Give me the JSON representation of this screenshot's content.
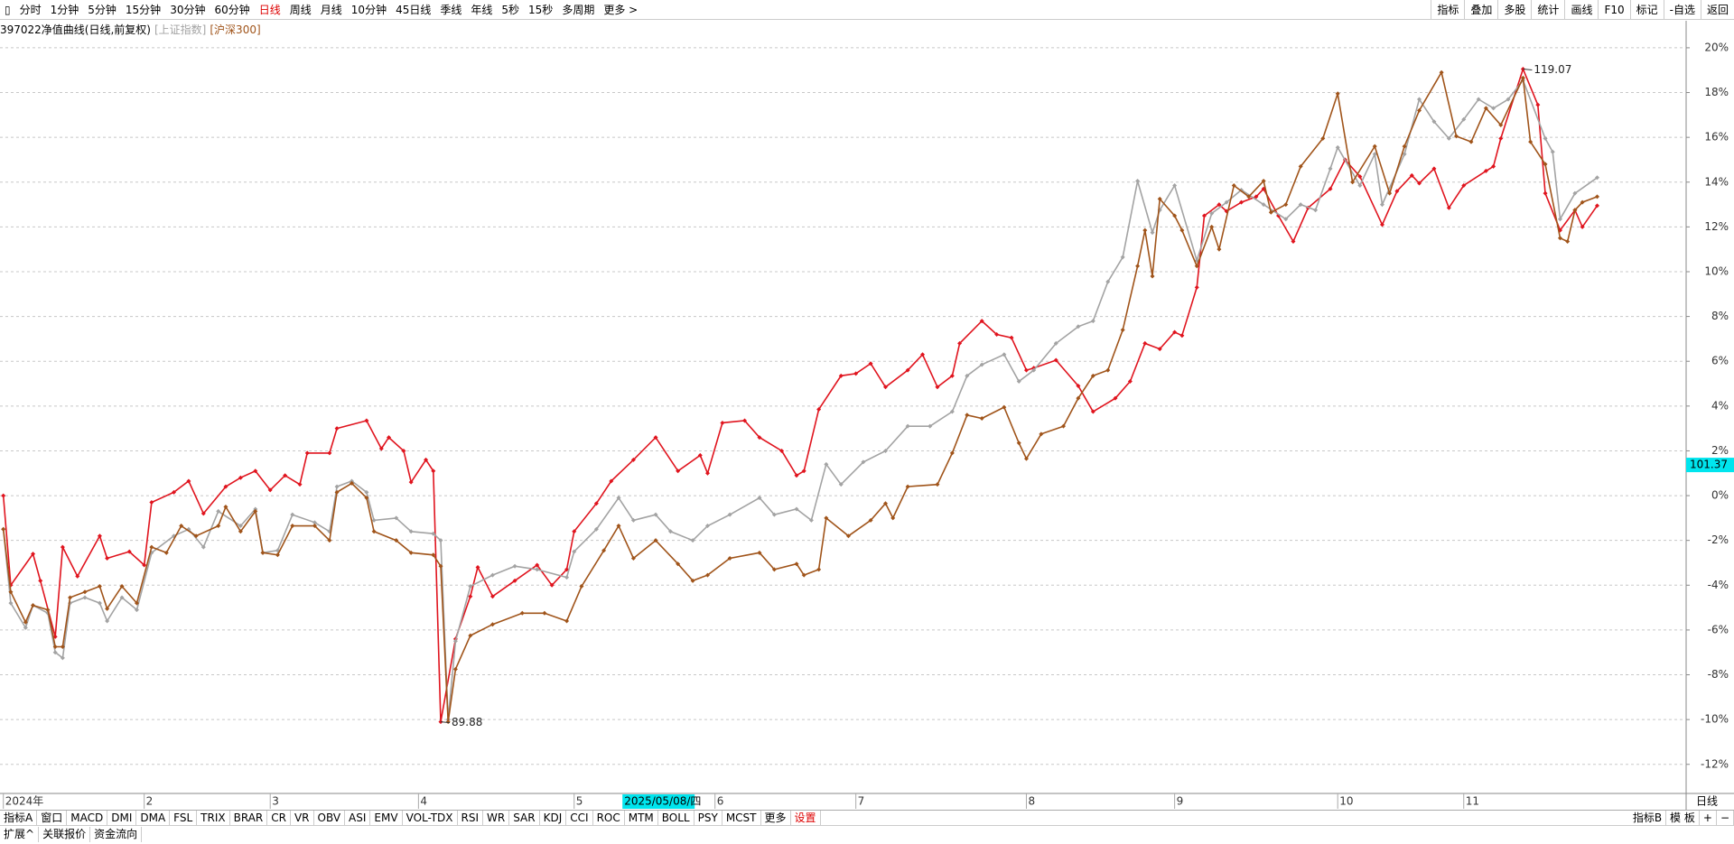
{
  "toolbar": {
    "left": [
      "分时",
      "1分钟",
      "5分钟",
      "15分钟",
      "30分钟",
      "60分钟",
      "日线",
      "周线",
      "月线",
      "10分钟",
      "45日线",
      "季线",
      "年线",
      "5秒",
      "15秒",
      "多周期",
      "更多 >"
    ],
    "right": [
      "指标",
      "叠加",
      "多股",
      "统计",
      "画线",
      "F10",
      "标记",
      "-自选",
      "返回"
    ]
  },
  "chart_data": {
    "type": "line",
    "period_label": "日线",
    "xlim": [
      0,
      227
    ],
    "ylim": [
      -13.3,
      20.4
    ],
    "xticks": [
      {
        "value": 0,
        "label": "2024年"
      },
      {
        "value": 19,
        "label": "2"
      },
      {
        "value": 36,
        "label": "3"
      },
      {
        "value": 56,
        "label": "4"
      },
      {
        "value": 77,
        "label": "5"
      },
      {
        "value": 96,
        "label": "6"
      },
      {
        "value": 115,
        "label": "7"
      },
      {
        "value": 138,
        "label": "8"
      },
      {
        "value": 158,
        "label": "9"
      },
      {
        "value": 180,
        "label": "10"
      },
      {
        "value": 197,
        "label": "11"
      }
    ],
    "yticks": [
      {
        "value": -12,
        "label": "-12%"
      },
      {
        "value": -10,
        "label": "-10%"
      },
      {
        "value": -8,
        "label": "-8%"
      },
      {
        "value": -6,
        "label": "-6%"
      },
      {
        "value": -4,
        "label": "-4%"
      },
      {
        "value": -2,
        "label": "-2%"
      },
      {
        "value": 0,
        "label": "0%"
      },
      {
        "value": 2,
        "label": "2%"
      },
      {
        "value": 4,
        "label": "4%"
      },
      {
        "value": 6,
        "label": "6%"
      },
      {
        "value": 8,
        "label": "8%"
      },
      {
        "value": 10,
        "label": "10%"
      },
      {
        "value": 12,
        "label": "12%"
      },
      {
        "value": 14,
        "label": "14%"
      },
      {
        "value": 16,
        "label": "16%"
      },
      {
        "value": 18,
        "label": "18%"
      },
      {
        "value": 20,
        "label": "20%"
      }
    ],
    "grid": true,
    "cursor_x": {
      "value": 84,
      "label": "2025/05/08/四"
    },
    "cursor_y": {
      "value": 1.37,
      "label": "101.37"
    },
    "annotations": [
      {
        "text": "119.07",
        "x": 205,
        "y": 19.05
      },
      {
        "text": "89.88",
        "x": 59,
        "y": -10.1
      }
    ],
    "series": [
      {
        "name": "397022净值曲线(日线,前复权)",
        "color": "#e0141e",
        "x": [
          0,
          1,
          4,
          5,
          7,
          8,
          10,
          13,
          14,
          17,
          19,
          20,
          23,
          25,
          27,
          30,
          32,
          34,
          36,
          38,
          40,
          41,
          44,
          45,
          49,
          51,
          52,
          54,
          55,
          57,
          58,
          59,
          61,
          63,
          64,
          66,
          69,
          72,
          74,
          76,
          77,
          80,
          82,
          85,
          88,
          91,
          94,
          95,
          97,
          100,
          102,
          105,
          107,
          108,
          110,
          113,
          115,
          117,
          119,
          122,
          124,
          126,
          128,
          129,
          132,
          134,
          136,
          138,
          139,
          142,
          145,
          147,
          150,
          152,
          154,
          156,
          158,
          159,
          161,
          162,
          164,
          165,
          167,
          169,
          170,
          172,
          174,
          176,
          179,
          181,
          183,
          186,
          188,
          190,
          191,
          193,
          195,
          197,
          200,
          201,
          202,
          205,
          207,
          208,
          210,
          212,
          213,
          215
        ],
        "values": [
          0,
          -4.0,
          -2.6,
          -3.8,
          -6.3,
          -2.3,
          -3.6,
          -1.8,
          -2.8,
          -2.5,
          -3.1,
          -0.3,
          0.15,
          0.65,
          -0.8,
          0.4,
          0.8,
          1.1,
          0.25,
          0.9,
          0.5,
          1.9,
          1.9,
          3.0,
          3.35,
          2.1,
          2.6,
          2.0,
          0.6,
          1.6,
          1.1,
          -10.1,
          -6.4,
          -4.5,
          -3.2,
          -4.5,
          -3.8,
          -3.1,
          -4.0,
          -3.3,
          -1.6,
          -0.35,
          0.65,
          1.6,
          2.6,
          1.1,
          1.8,
          1.0,
          3.25,
          3.35,
          2.6,
          2.0,
          0.9,
          1.1,
          3.85,
          5.35,
          5.45,
          5.9,
          4.85,
          5.6,
          6.3,
          4.85,
          5.35,
          6.8,
          7.8,
          7.2,
          7.05,
          5.6,
          5.7,
          6.05,
          4.9,
          3.75,
          4.35,
          5.1,
          6.8,
          6.55,
          7.3,
          7.15,
          9.3,
          12.5,
          13.0,
          12.7,
          13.1,
          13.35,
          13.7,
          12.5,
          11.35,
          12.85,
          13.7,
          15.0,
          14.25,
          12.1,
          13.6,
          14.3,
          13.95,
          14.6,
          12.85,
          13.85,
          14.5,
          14.7,
          15.95,
          19.05,
          17.45,
          13.5,
          11.85,
          12.75,
          12.0,
          12.95
        ]
      },
      {
        "name": "[上证指数]",
        "color": "#a3a3a3",
        "x": [
          0,
          1,
          3,
          4,
          6,
          7,
          8,
          9,
          11,
          13,
          14,
          16,
          18,
          20,
          23,
          25,
          27,
          29,
          32,
          34,
          35,
          37,
          39,
          42,
          44,
          45,
          47,
          49,
          50,
          53,
          55,
          58,
          59,
          60,
          61,
          63,
          66,
          69,
          72,
          76,
          77,
          80,
          83,
          85,
          88,
          90,
          93,
          95,
          98,
          102,
          104,
          107,
          109,
          111,
          113,
          116,
          119,
          122,
          125,
          128,
          130,
          132,
          135,
          137,
          139,
          142,
          145,
          147,
          149,
          151,
          153,
          155,
          156,
          158,
          161,
          163,
          165,
          167,
          170,
          173,
          175,
          177,
          179,
          180,
          183,
          185,
          186,
          189,
          191,
          193,
          195,
          197,
          199,
          201,
          203,
          205,
          208,
          209,
          210,
          212,
          215
        ],
        "values": [
          -1.5,
          -4.8,
          -5.9,
          -4.9,
          -5.25,
          -7.0,
          -7.25,
          -4.8,
          -4.55,
          -4.8,
          -5.6,
          -4.55,
          -5.1,
          -2.55,
          -1.8,
          -1.5,
          -2.3,
          -0.7,
          -1.35,
          -0.6,
          -2.55,
          -2.45,
          -0.85,
          -1.2,
          -1.6,
          0.4,
          0.65,
          0.15,
          -1.1,
          -1.0,
          -1.6,
          -1.7,
          -2.0,
          -10.0,
          -6.5,
          -4.05,
          -3.55,
          -3.15,
          -3.3,
          -3.65,
          -2.5,
          -1.5,
          -0.1,
          -1.1,
          -0.85,
          -1.6,
          -2.0,
          -1.35,
          -0.85,
          -0.1,
          -0.85,
          -0.6,
          -1.1,
          1.4,
          0.5,
          1.5,
          2.0,
          3.1,
          3.1,
          3.75,
          5.35,
          5.85,
          6.3,
          5.1,
          5.6,
          6.8,
          7.55,
          7.8,
          9.55,
          10.65,
          14.05,
          11.75,
          12.75,
          13.85,
          10.5,
          12.6,
          13.1,
          13.65,
          13.0,
          12.35,
          13.0,
          12.75,
          14.6,
          15.55,
          13.85,
          15.25,
          13.0,
          15.25,
          17.7,
          16.7,
          15.95,
          16.8,
          17.7,
          17.3,
          17.7,
          18.55,
          15.95,
          15.35,
          12.35,
          13.5,
          14.2
        ]
      },
      {
        "name": "[沪深300]",
        "color": "#a0541a",
        "x": [
          0,
          1,
          3,
          4,
          6,
          7,
          8,
          9,
          11,
          13,
          14,
          16,
          18,
          20,
          22,
          24,
          26,
          29,
          30,
          32,
          34,
          35,
          37,
          39,
          42,
          44,
          45,
          47,
          49,
          50,
          53,
          55,
          58,
          59,
          60,
          61,
          63,
          66,
          70,
          73,
          76,
          78,
          81,
          83,
          85,
          88,
          91,
          93,
          95,
          98,
          102,
          104,
          107,
          108,
          110,
          111,
          114,
          117,
          119,
          120,
          122,
          126,
          128,
          130,
          132,
          135,
          137,
          138,
          140,
          143,
          145,
          147,
          149,
          151,
          153,
          154,
          155,
          156,
          158,
          159,
          161,
          163,
          164,
          166,
          168,
          170,
          171,
          173,
          175,
          178,
          180,
          182,
          185,
          187,
          189,
          191,
          194,
          196,
          198,
          200,
          202,
          205,
          206,
          208,
          210,
          211,
          212,
          213,
          215
        ],
        "values": [
          -1.5,
          -4.3,
          -5.65,
          -4.9,
          -5.1,
          -6.75,
          -6.75,
          -4.55,
          -4.3,
          -4.05,
          -5.05,
          -4.05,
          -4.8,
          -2.3,
          -2.55,
          -1.35,
          -1.8,
          -1.35,
          -0.5,
          -1.6,
          -0.7,
          -2.55,
          -2.65,
          -1.35,
          -1.35,
          -2.0,
          0.15,
          0.55,
          -0.1,
          -1.6,
          -2.0,
          -2.55,
          -2.65,
          -3.15,
          -10.1,
          -7.75,
          -6.25,
          -5.75,
          -5.25,
          -5.25,
          -5.6,
          -4.05,
          -2.45,
          -1.35,
          -2.8,
          -2.0,
          -3.05,
          -3.8,
          -3.55,
          -2.8,
          -2.55,
          -3.3,
          -3.05,
          -3.55,
          -3.3,
          -1.0,
          -1.8,
          -1.1,
          -0.35,
          -1.0,
          0.4,
          0.5,
          1.9,
          3.6,
          3.45,
          3.95,
          2.35,
          1.65,
          2.75,
          3.1,
          4.35,
          5.35,
          5.6,
          7.4,
          10.25,
          11.85,
          9.8,
          13.25,
          12.5,
          11.85,
          10.25,
          12.0,
          11.0,
          13.85,
          13.35,
          14.05,
          12.65,
          13.0,
          14.7,
          15.95,
          17.95,
          14.0,
          15.6,
          13.5,
          15.6,
          17.2,
          18.9,
          16.05,
          15.8,
          17.3,
          16.55,
          18.65,
          15.8,
          14.8,
          11.5,
          11.35,
          12.75,
          13.1,
          13.35
        ]
      }
    ]
  },
  "bottom_tabs": {
    "left": [
      "指标A",
      "窗口",
      "MACD",
      "DMI",
      "DMA",
      "FSL",
      "TRIX",
      "BRAR",
      "CR",
      "VR",
      "OBV",
      "ASI",
      "EMV",
      "VOL-TDX",
      "RSI",
      "WR",
      "SAR",
      "KDJ",
      "CCI",
      "ROC",
      "MTM",
      "BOLL",
      "PSY",
      "MCST",
      "更多",
      "设置"
    ],
    "right": [
      "指标B",
      "模 板",
      "+",
      "−"
    ]
  },
  "bottom_row": [
    "扩展^",
    "关联报价",
    "资金流向"
  ]
}
